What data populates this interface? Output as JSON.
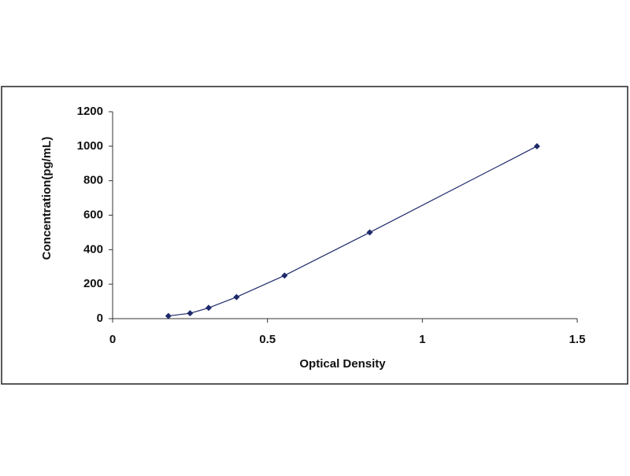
{
  "chart_data": {
    "type": "scatter",
    "line": true,
    "x_label": "Optical Density",
    "y_label": "Concentration(pg/mL)",
    "x": [
      0.18,
      0.25,
      0.31,
      0.4,
      0.555,
      0.83,
      1.37
    ],
    "y": [
      15.6,
      31.2,
      62.5,
      125,
      250,
      500,
      1000
    ],
    "color": "#1f2a6b",
    "xlim": [
      0,
      1.5
    ],
    "xticks": [
      0,
      0.5,
      1,
      1.5
    ],
    "ylim": [
      0,
      1200
    ],
    "yticks": [
      0,
      200,
      400,
      600,
      800,
      1000,
      1200
    ],
    "grid": false
  }
}
